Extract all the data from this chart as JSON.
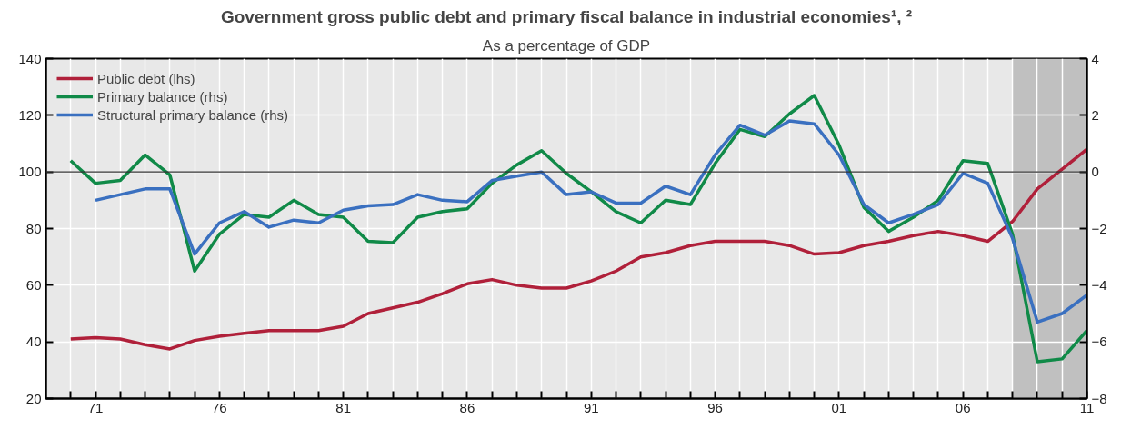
{
  "chart_data": {
    "type": "line",
    "title": "Government gross public debt and primary fiscal balance in industrial economies¹, ²",
    "subtitle": "As a percentage of GDP",
    "x": [
      1970,
      1971,
      1972,
      1973,
      1974,
      1975,
      1976,
      1977,
      1978,
      1979,
      1980,
      1981,
      1982,
      1983,
      1984,
      1985,
      1986,
      1987,
      1988,
      1989,
      1990,
      1991,
      1992,
      1993,
      1994,
      1995,
      1996,
      1997,
      1998,
      1999,
      2000,
      2001,
      2002,
      2003,
      2004,
      2005,
      2006,
      2007,
      2008,
      2009,
      2010,
      2011
    ],
    "series": [
      {
        "name": "Public debt (lhs)",
        "color": "#b0203a",
        "values": [
          41,
          41.5,
          41,
          39,
          37.5,
          40.5,
          42,
          43,
          44,
          44,
          44,
          45.5,
          50,
          52,
          54,
          57,
          60.5,
          62,
          60,
          59,
          59,
          61.5,
          65,
          70,
          71.5,
          74,
          75.5,
          75.5,
          75.5,
          74,
          71,
          71.5,
          74,
          75.5,
          77.5,
          79,
          77.5,
          75.5,
          82.5,
          94,
          101,
          108
        ]
      },
      {
        "name": "Primary balance (rhs)",
        "color": "#108a48",
        "axis": "y2",
        "values": [
          0.4,
          -0.4,
          -0.3,
          0.6,
          -0.1,
          -3.5,
          -2.2,
          -1.5,
          -1.6,
          -1.0,
          -1.5,
          -1.6,
          -2.45,
          -2.5,
          -1.6,
          -1.4,
          -1.3,
          -0.4,
          0.25,
          0.75,
          -0.05,
          -0.7,
          -1.4,
          -1.8,
          -1.0,
          -1.15,
          0.3,
          1.5,
          1.25,
          2.05,
          2.7,
          0.95,
          -1.25,
          -2.1,
          -1.6,
          -1.0,
          0.4,
          0.3,
          -2.2,
          -6.7,
          -6.6,
          -5.6
        ]
      },
      {
        "name": "Structural primary balance (rhs)",
        "color": "#3a70c0",
        "axis": "y2",
        "values": [
          null,
          -1.0,
          -0.8,
          -0.6,
          -0.6,
          -2.9,
          -1.8,
          -1.4,
          -1.95,
          -1.7,
          -1.8,
          -1.35,
          -1.2,
          -1.15,
          -0.8,
          -1.0,
          -1.05,
          -0.3,
          -0.15,
          0.0,
          -0.8,
          -0.7,
          -1.1,
          -1.1,
          -0.5,
          -0.8,
          0.6,
          1.65,
          1.3,
          1.8,
          1.7,
          0.6,
          -1.15,
          -1.8,
          -1.5,
          -1.15,
          -0.05,
          -0.4,
          -2.35,
          -5.3,
          -5.0,
          -4.35
        ]
      }
    ],
    "xlim": [
      1969,
      2011
    ],
    "xticks": [
      {
        "value": 1970,
        "label": null
      },
      {
        "value": 1971,
        "label": "71"
      },
      {
        "value": 1972,
        "label": null
      },
      {
        "value": 1973,
        "label": null
      },
      {
        "value": 1974,
        "label": null
      },
      {
        "value": 1975,
        "label": null
      },
      {
        "value": 1976,
        "label": "76"
      },
      {
        "value": 1977,
        "label": null
      },
      {
        "value": 1978,
        "label": null
      },
      {
        "value": 1979,
        "label": null
      },
      {
        "value": 1980,
        "label": null
      },
      {
        "value": 1981,
        "label": "81"
      },
      {
        "value": 1982,
        "label": null
      },
      {
        "value": 1983,
        "label": null
      },
      {
        "value": 1984,
        "label": null
      },
      {
        "value": 1985,
        "label": null
      },
      {
        "value": 1986,
        "label": "86"
      },
      {
        "value": 1987,
        "label": null
      },
      {
        "value": 1988,
        "label": null
      },
      {
        "value": 1989,
        "label": null
      },
      {
        "value": 1990,
        "label": null
      },
      {
        "value": 1991,
        "label": "91"
      },
      {
        "value": 1992,
        "label": null
      },
      {
        "value": 1993,
        "label": null
      },
      {
        "value": 1994,
        "label": null
      },
      {
        "value": 1995,
        "label": null
      },
      {
        "value": 1996,
        "label": "96"
      },
      {
        "value": 1997,
        "label": null
      },
      {
        "value": 1998,
        "label": null
      },
      {
        "value": 1999,
        "label": null
      },
      {
        "value": 2000,
        "label": null
      },
      {
        "value": 2001,
        "label": "01"
      },
      {
        "value": 2002,
        "label": null
      },
      {
        "value": 2003,
        "label": null
      },
      {
        "value": 2004,
        "label": null
      },
      {
        "value": 2005,
        "label": null
      },
      {
        "value": 2006,
        "label": "06"
      },
      {
        "value": 2007,
        "label": null
      },
      {
        "value": 2008,
        "label": null
      },
      {
        "value": 2009,
        "label": null
      },
      {
        "value": 2010,
        "label": null
      },
      {
        "value": 2011,
        "label": "11"
      }
    ],
    "ylim": [
      20,
      140
    ],
    "yticks": [
      20,
      40,
      60,
      80,
      100,
      120,
      140
    ],
    "y2lim": [
      -8,
      4
    ],
    "y2ticks": [
      {
        "value": -8,
        "label": "−8"
      },
      {
        "value": -6,
        "label": "−6"
      },
      {
        "value": -4,
        "label": "−4"
      },
      {
        "value": -2,
        "label": "−2"
      },
      0,
      2,
      4
    ],
    "ref_lines": [
      {
        "axis": "y2",
        "value": 0,
        "color": "#333333",
        "line_style": "solid"
      }
    ],
    "bands": [
      {
        "axis": "x",
        "from": 2008,
        "to": 2011,
        "color": "#c0c0c0"
      }
    ],
    "grid": true,
    "legend": "top left",
    "line_style": "solid",
    "marker": "none"
  }
}
